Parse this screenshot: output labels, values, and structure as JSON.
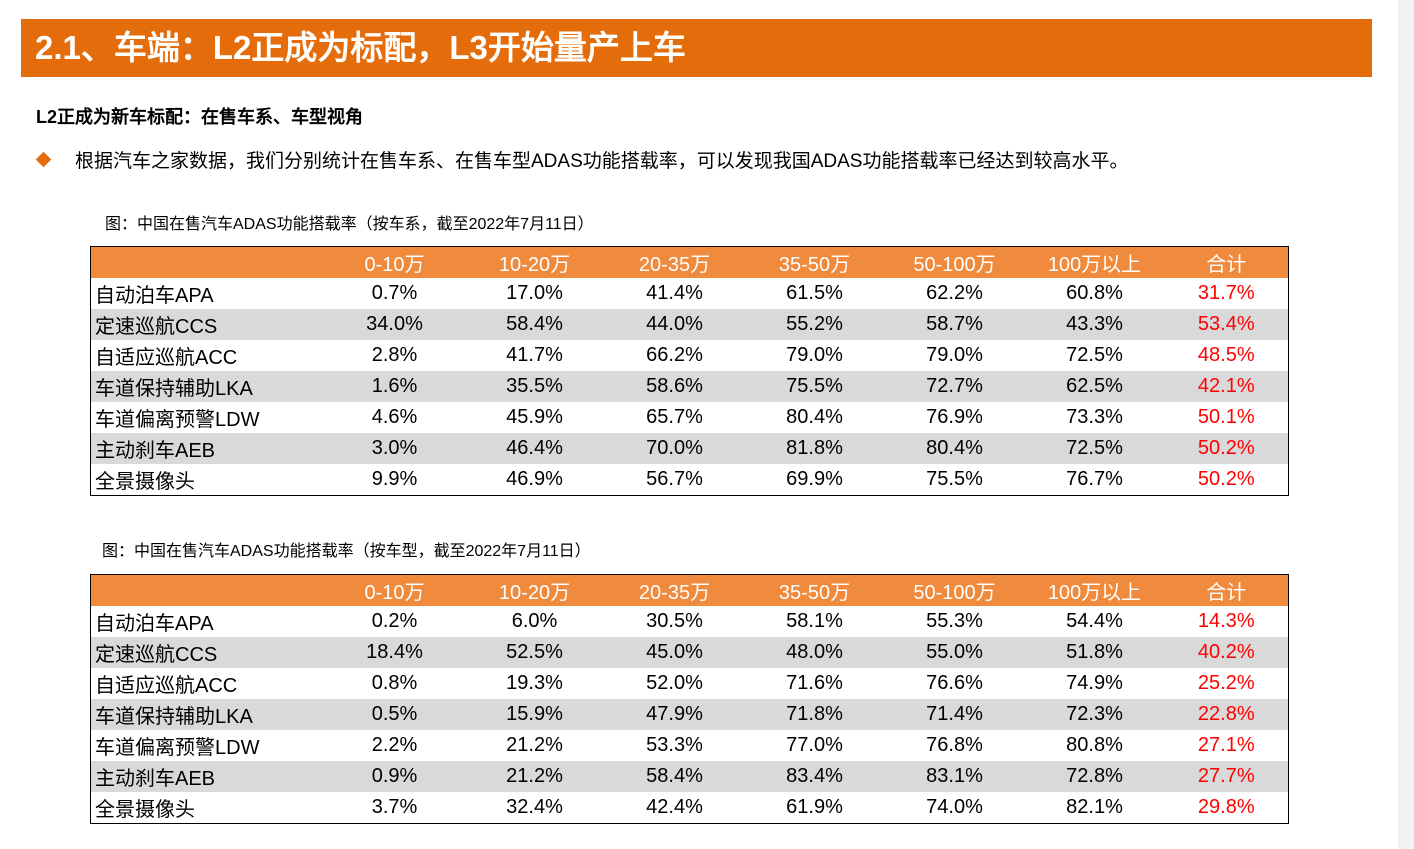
{
  "title": "2.1、车端：L2正成为标配，L3开始量产上车",
  "subtitle": "L2正成为新车标配：在售车系、车型视角",
  "bullet_text": "根据汽车之家数据，我们分别统计在售车系、在售车型ADAS功能搭载率，可以发现我国ADAS功能搭载率已经达到较高水平。",
  "colors": {
    "accent": "#E46C0A",
    "header": "#F08A3C",
    "shade": "#D9D9D9",
    "total_text": "#FF0000"
  },
  "table1": {
    "caption": "图：中国在售汽车ADAS功能搭载率（按车系，截至2022年7月11日）",
    "headers": [
      "",
      "0-10万",
      "10-20万",
      "20-35万",
      "35-50万",
      "50-100万",
      "100万以上",
      "合计"
    ],
    "rows": [
      [
        "自动泊车APA",
        "0.7%",
        "17.0%",
        "41.4%",
        "61.5%",
        "62.2%",
        "60.8%",
        "31.7%"
      ],
      [
        "定速巡航CCS",
        "34.0%",
        "58.4%",
        "44.0%",
        "55.2%",
        "58.7%",
        "43.3%",
        "53.4%"
      ],
      [
        "自适应巡航ACC",
        "2.8%",
        "41.7%",
        "66.2%",
        "79.0%",
        "79.0%",
        "72.5%",
        "48.5%"
      ],
      [
        "车道保持辅助LKA",
        "1.6%",
        "35.5%",
        "58.6%",
        "75.5%",
        "72.7%",
        "62.5%",
        "42.1%"
      ],
      [
        "车道偏离预警LDW",
        "4.6%",
        "45.9%",
        "65.7%",
        "80.4%",
        "76.9%",
        "73.3%",
        "50.1%"
      ],
      [
        "主动刹车AEB",
        "3.0%",
        "46.4%",
        "70.0%",
        "81.8%",
        "80.4%",
        "72.5%",
        "50.2%"
      ],
      [
        "全景摄像头",
        "9.9%",
        "46.9%",
        "56.7%",
        "69.9%",
        "75.5%",
        "76.7%",
        "50.2%"
      ]
    ]
  },
  "table2": {
    "caption": "图：中国在售汽车ADAS功能搭载率（按车型，截至2022年7月11日）",
    "headers": [
      "",
      "0-10万",
      "10-20万",
      "20-35万",
      "35-50万",
      "50-100万",
      "100万以上",
      "合计"
    ],
    "rows": [
      [
        "自动泊车APA",
        "0.2%",
        "6.0%",
        "30.5%",
        "58.1%",
        "55.3%",
        "54.4%",
        "14.3%"
      ],
      [
        "定速巡航CCS",
        "18.4%",
        "52.5%",
        "45.0%",
        "48.0%",
        "55.0%",
        "51.8%",
        "40.2%"
      ],
      [
        "自适应巡航ACC",
        "0.8%",
        "19.3%",
        "52.0%",
        "71.6%",
        "76.6%",
        "74.9%",
        "25.2%"
      ],
      [
        "车道保持辅助LKA",
        "0.5%",
        "15.9%",
        "47.9%",
        "71.8%",
        "71.4%",
        "72.3%",
        "22.8%"
      ],
      [
        "车道偏离预警LDW",
        "2.2%",
        "21.2%",
        "53.3%",
        "77.0%",
        "76.8%",
        "80.8%",
        "27.1%"
      ],
      [
        "主动刹车AEB",
        "0.9%",
        "21.2%",
        "58.4%",
        "83.4%",
        "83.1%",
        "72.8%",
        "27.7%"
      ],
      [
        "全景摄像头",
        "3.7%",
        "32.4%",
        "42.4%",
        "61.9%",
        "74.0%",
        "82.1%",
        "29.8%"
      ]
    ]
  }
}
